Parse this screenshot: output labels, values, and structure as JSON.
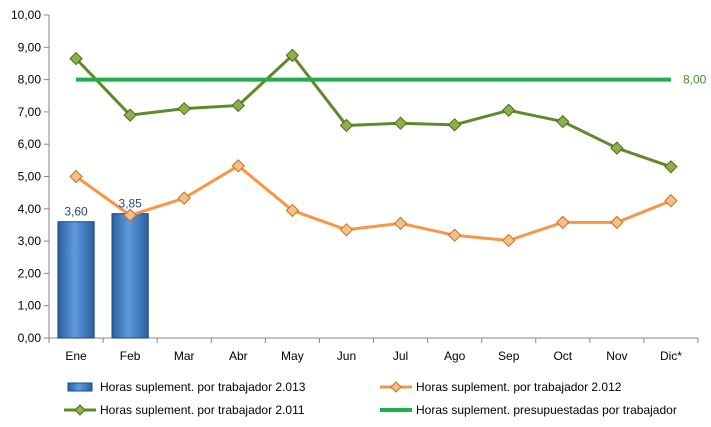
{
  "chart_data": {
    "type": "bar",
    "categories": [
      "Ene",
      "Feb",
      "Mar",
      "Abr",
      "May",
      "Jun",
      "Jul",
      "Ago",
      "Sep",
      "Oct",
      "Nov",
      "Dic*"
    ],
    "ylim": [
      0,
      10
    ],
    "y_ticks": [
      "0,00",
      "1,00",
      "2,00",
      "3,00",
      "4,00",
      "5,00",
      "6,00",
      "7,00",
      "8,00",
      "9,00",
      "10,00"
    ],
    "grid": false,
    "legend_position": "bottom",
    "series": [
      {
        "name": "Horas suplement. por trabajador 2.013",
        "kind": "bar",
        "color": "#4a86c8",
        "values": [
          3.6,
          3.85,
          null,
          null,
          null,
          null,
          null,
          null,
          null,
          null,
          null,
          null
        ],
        "data_labels": [
          "3,60",
          "3,85"
        ]
      },
      {
        "name": "Horas suplement. por trabajador 2.012",
        "kind": "line",
        "color": "#f79646",
        "values": [
          5.0,
          3.8,
          4.33,
          5.33,
          3.95,
          3.35,
          3.55,
          3.18,
          3.02,
          3.58,
          3.58,
          4.25
        ]
      },
      {
        "name": "Horas suplement. por trabajador 2.011",
        "kind": "line",
        "color": "#5f8a28",
        "values": [
          8.65,
          6.9,
          7.1,
          7.2,
          8.75,
          6.58,
          6.65,
          6.6,
          7.05,
          6.7,
          5.88,
          5.3
        ]
      },
      {
        "name": "Horas suplement. presupuestadas por trabajador",
        "kind": "flat-line",
        "color": "#1fae4a",
        "values": [
          8,
          8,
          8,
          8,
          8,
          8,
          8,
          8,
          8,
          8,
          8,
          8
        ],
        "end_label": "8,00"
      }
    ]
  }
}
